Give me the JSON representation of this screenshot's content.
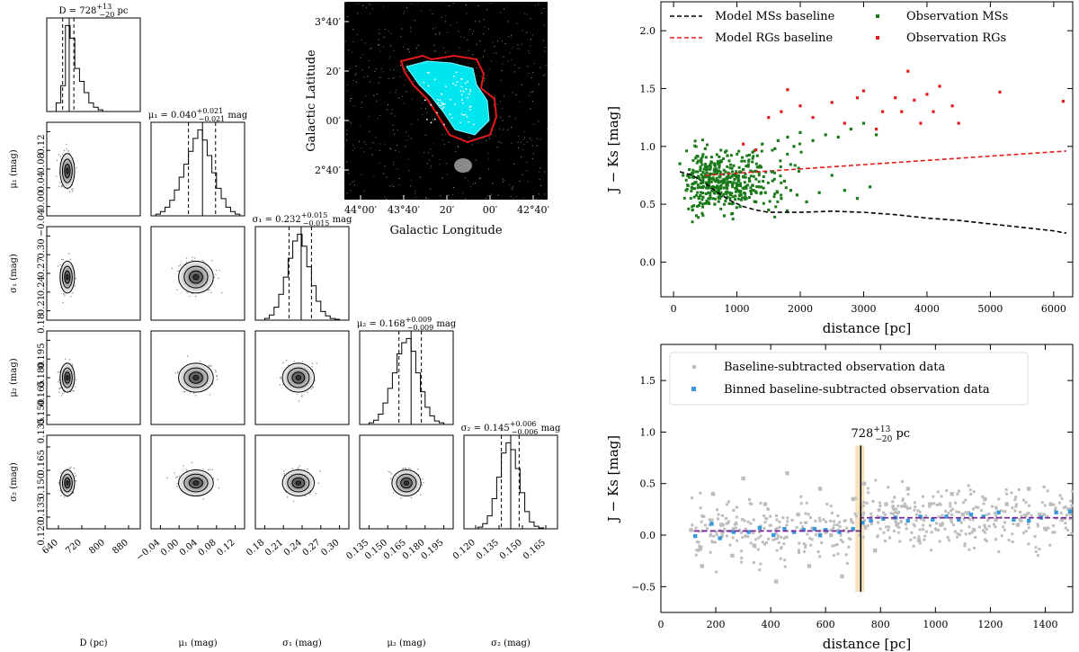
{
  "corner_plot": {
    "param_labels": [
      "D (pc)",
      "μ₁ (mag)",
      "σ₁ (mag)",
      "μ₂ (mag)",
      "σ₂ (mag)"
    ],
    "y_labels": [
      "μ₁ (mag)",
      "σ₁ (mag)",
      "μ₂ (mag)",
      "σ₂ (mag)"
    ],
    "titles": [
      {
        "main": "D = 728",
        "sup": "+13",
        "sub": "−20",
        "unit": " pc"
      },
      {
        "main": "μ₁ = 0.040",
        "sup": "+0.021",
        "sub": "−0.021",
        "unit": " mag"
      },
      {
        "main": "σ₁ = 0.232",
        "sup": "+0.015",
        "sub": "−0.015",
        "unit": " mag"
      },
      {
        "main": "μ₂ = 0.168",
        "sup": "+0.009",
        "sub": "−0.009",
        "unit": " mag"
      },
      {
        "main": "σ₂ = 0.145",
        "sup": "+0.006",
        "sub": "−0.006",
        "unit": " mag"
      }
    ],
    "x_ticks": [
      [
        "640",
        "720",
        "800",
        "880"
      ],
      [
        "−0.04",
        "0.00",
        "0.04",
        "0.08",
        "0.12"
      ],
      [
        "0.18",
        "0.21",
        "0.24",
        "0.27",
        "0.30"
      ],
      [
        "0.135",
        "0.150",
        "0.165",
        "0.180",
        "0.195"
      ],
      [
        "0.120",
        "0.135",
        "0.150",
        "0.165"
      ]
    ],
    "y_ticks": [
      [
        "−0.04",
        "0.00",
        "0.04",
        "0.08",
        "0.12"
      ],
      [
        "0.18",
        "0.21",
        "0.24",
        "0.27",
        "0.30"
      ],
      [
        "0.135",
        "0.150",
        "0.165",
        "0.180",
        "0.195"
      ],
      [
        "0.120",
        "0.135",
        "0.150",
        "0.165"
      ]
    ]
  },
  "sky_map": {
    "xlabel": "Galactic Longitude",
    "ylabel": "Galactic Latitude",
    "x_ticks": [
      "44°00′",
      "43°40′",
      "20′",
      "00′",
      "42°40′"
    ],
    "y_ticks": [
      "3°40′",
      "20′",
      "00′",
      "2°40′"
    ]
  },
  "chart_data": [
    {
      "type": "scatter",
      "title": "",
      "xlabel": "distance [pc]",
      "ylabel": "J − Ks [mag]",
      "xlim": [
        -200,
        6300
      ],
      "ylim": [
        -0.3,
        2.25
      ],
      "x_ticks": [
        "0",
        "1000",
        "2000",
        "3000",
        "4000",
        "5000",
        "6000"
      ],
      "y_ticks": [
        "0.0",
        "0.5",
        "1.0",
        "1.5",
        "2.0"
      ],
      "legend": [
        "Model MSs baseline",
        "Model RGs baseline",
        "Observation MSs",
        "Observation RGs"
      ],
      "series": [
        {
          "name": "Model MSs baseline",
          "style": "dashed",
          "color": "#000000",
          "x": [
            100,
            300,
            500,
            700,
            900,
            1100,
            1300,
            1500,
            1700,
            2000,
            2500,
            3000,
            3500,
            4000,
            4500,
            5000,
            5500,
            6000,
            6200
          ],
          "y": [
            0.78,
            0.75,
            0.68,
            0.6,
            0.53,
            0.48,
            0.45,
            0.43,
            0.43,
            0.43,
            0.44,
            0.43,
            0.41,
            0.38,
            0.36,
            0.33,
            0.3,
            0.27,
            0.25
          ]
        },
        {
          "name": "Model RGs baseline",
          "style": "dashed",
          "color": "#e41a1c",
          "x": [
            500,
            6200
          ],
          "y": [
            0.75,
            0.96
          ]
        },
        {
          "name": "Observation MSs",
          "style": "points",
          "color": "#1a7a1a",
          "x": [
            100,
            150,
            200,
            250,
            300,
            350,
            400,
            450,
            500,
            550,
            600,
            650,
            700,
            750,
            800,
            850,
            900,
            950,
            1000,
            1050,
            1100,
            1150,
            1200,
            1250,
            1300,
            1350,
            1400,
            1450,
            1500,
            1550,
            1600,
            1650,
            1700,
            1750,
            1800,
            1850,
            1900,
            1950,
            2000,
            2100,
            2200,
            2300,
            2400,
            2500,
            2600,
            2700,
            2800,
            2900,
            3000,
            3100,
            3200
          ],
          "y": [
            0.85,
            0.75,
            0.62,
            0.8,
            0.45,
            0.9,
            0.55,
            0.7,
            0.98,
            0.6,
            0.72,
            0.5,
            0.85,
            0.66,
            0.4,
            0.92,
            0.58,
            0.75,
            0.62,
            0.48,
            0.8,
            0.55,
            0.7,
            0.95,
            0.52,
            0.65,
            1.02,
            0.6,
            0.45,
            0.78,
            0.98,
            1.05,
            0.55,
            0.7,
            1.08,
            0.62,
            1.0,
            0.58,
            1.12,
            0.52,
            1.05,
            0.6,
            1.1,
            0.75,
            1.08,
            0.62,
            1.15,
            0.55,
            1.2,
            0.65,
            1.1
          ]
        },
        {
          "name": "Observation RGs",
          "style": "points",
          "color": "#e41a1c",
          "x": [
            1100,
            1300,
            1500,
            1700,
            1800,
            2000,
            2200,
            2500,
            2700,
            2900,
            3000,
            3200,
            3300,
            3500,
            3600,
            3700,
            3800,
            3900,
            4000,
            4100,
            4200,
            4400,
            4500,
            5150,
            6150
          ],
          "y": [
            1.02,
            0.97,
            1.25,
            1.3,
            1.49,
            1.35,
            1.25,
            1.38,
            1.2,
            1.42,
            1.48,
            1.15,
            1.3,
            1.42,
            1.3,
            1.65,
            1.4,
            1.2,
            1.45,
            1.3,
            1.52,
            1.35,
            1.2,
            1.47,
            1.39
          ]
        }
      ]
    },
    {
      "type": "scatter",
      "title": "",
      "xlabel": "distance [pc]",
      "ylabel": "J − Ks [mag]",
      "xlim": [
        0,
        1500
      ],
      "ylim": [
        -0.75,
        1.85
      ],
      "x_ticks": [
        "0",
        "200",
        "400",
        "600",
        "800",
        "1000",
        "1200",
        "1400"
      ],
      "y_ticks": [
        "−0.5",
        "0.0",
        "0.5",
        "1.0",
        "1.5"
      ],
      "legend": [
        "Baseline-subtracted observation data",
        "Binned baseline-subtracted observation data"
      ],
      "annotation": {
        "main": "728",
        "sup": "+13",
        "sub": "−20",
        "unit": " pc",
        "x": 728,
        "band": [
          708,
          741
        ]
      },
      "series": [
        {
          "name": "Baseline-subtracted observation data",
          "style": "points",
          "color": "#bdbdbd",
          "x": [
            110,
            150,
            190,
            220,
            260,
            300,
            340,
            380,
            420,
            460,
            500,
            540,
            580,
            620,
            660,
            700,
            740,
            780,
            820,
            860,
            900,
            940,
            980,
            1020,
            1060,
            1100,
            1140,
            1180,
            1220,
            1260,
            1300,
            1340,
            1380,
            1420,
            1460,
            1490
          ],
          "y": [
            0.05,
            -0.3,
            0.4,
            0.1,
            -0.2,
            0.55,
            -0.1,
            0.3,
            -0.45,
            0.6,
            0.2,
            -0.3,
            0.45,
            0.0,
            -0.4,
            0.35,
            0.5,
            -0.15,
            0.3,
            0.1,
            0.45,
            -0.05,
            0.3,
            0.1,
            0.4,
            0.2,
            0.05,
            0.35,
            0.15,
            0.3,
            0.1,
            0.45,
            0.2,
            0.3,
            0.15,
            0.25
          ]
        },
        {
          "name": "Binned baseline-subtracted observation data",
          "style": "points",
          "color": "#3a9ad9",
          "x": [
            125,
            185,
            215,
            265,
            320,
            360,
            410,
            450,
            485,
            520,
            560,
            580,
            600,
            650,
            700,
            735,
            765,
            810,
            855,
            900,
            945,
            990,
            1040,
            1085,
            1130,
            1175,
            1230,
            1285,
            1340,
            1385,
            1440,
            1490
          ],
          "y": [
            -0.01,
            0.11,
            -0.03,
            0.03,
            0.03,
            0.07,
            0.0,
            0.06,
            0.03,
            0.05,
            0.06,
            0.0,
            0.05,
            0.03,
            0.06,
            0.12,
            0.14,
            0.16,
            0.17,
            0.14,
            0.18,
            0.15,
            0.18,
            0.15,
            0.2,
            0.18,
            0.22,
            0.15,
            0.14,
            0.17,
            0.22,
            0.23
          ]
        },
        {
          "name": "Step fit (μ₁ → μ₂)",
          "style": "dashed",
          "color": "#7a2a9a",
          "x": [
            120,
            728,
            728,
            1500
          ],
          "y": [
            0.04,
            0.04,
            0.168,
            0.168
          ]
        }
      ]
    }
  ]
}
